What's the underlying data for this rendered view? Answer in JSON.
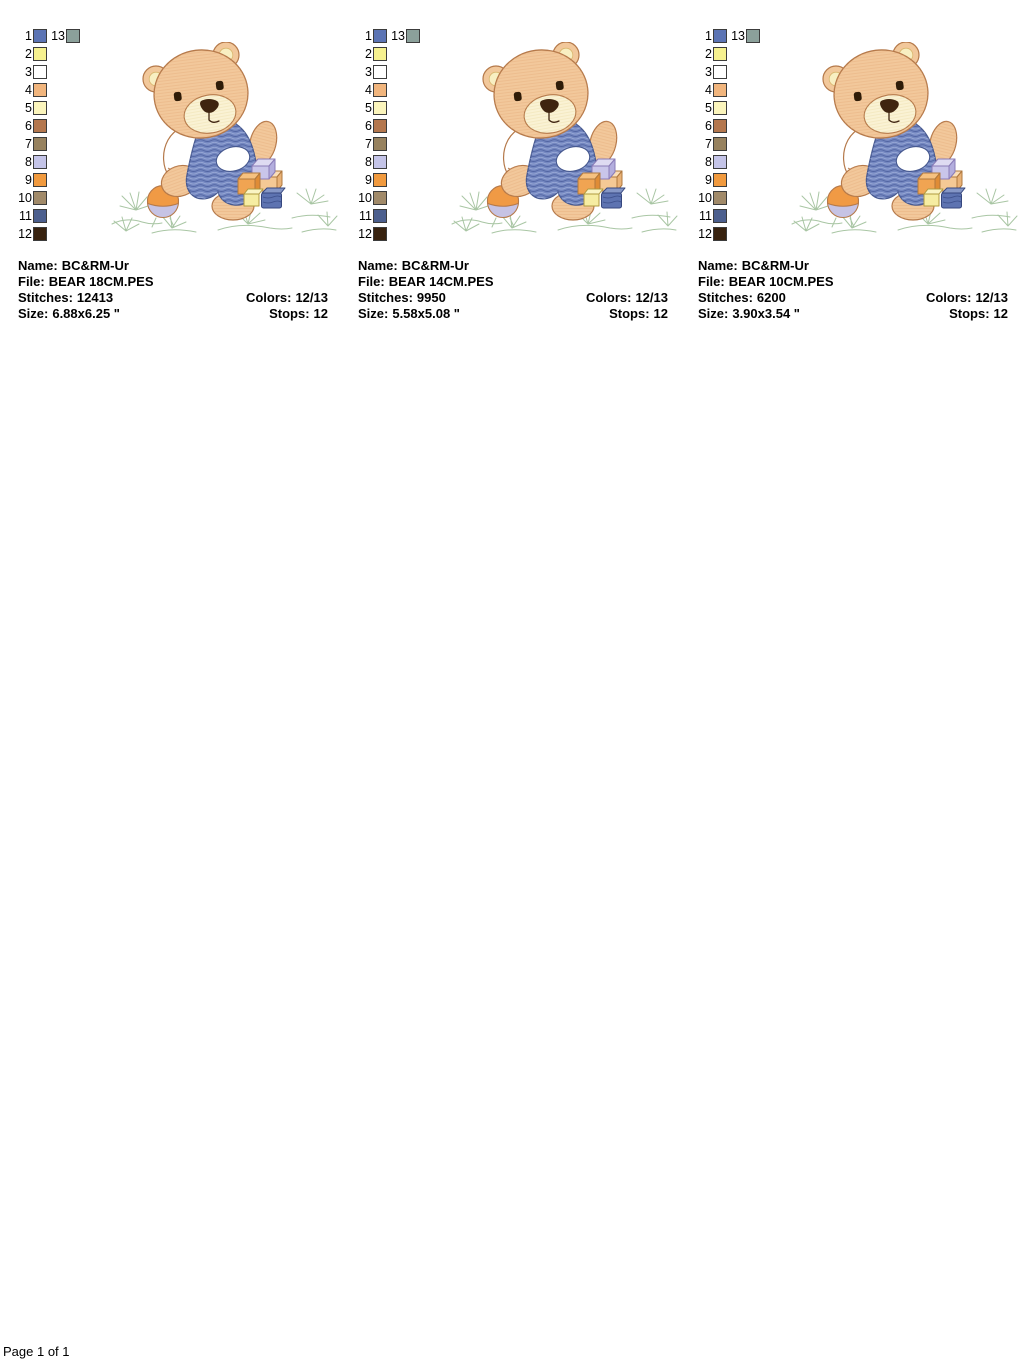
{
  "page": {
    "footer": "Page 1 of 1"
  },
  "palette": {
    "rows": [
      {
        "num": "1",
        "color": "#5c74b4"
      },
      {
        "num": "2",
        "color": "#f6f18f"
      },
      {
        "num": "3",
        "color": "#ffffff"
      },
      {
        "num": "4",
        "color": "#f1b57d"
      },
      {
        "num": "5",
        "color": "#fbf5bc"
      },
      {
        "num": "6",
        "color": "#b4774e"
      },
      {
        "num": "7",
        "color": "#97825f"
      },
      {
        "num": "8",
        "color": "#c4c4e8"
      },
      {
        "num": "9",
        "color": "#f19a3e"
      },
      {
        "num": "10",
        "color": "#a18a69"
      },
      {
        "num": "11",
        "color": "#4c5f8e"
      },
      {
        "num": "12",
        "color": "#38220f"
      }
    ],
    "extra": {
      "num": "13",
      "color": "#8ba09a"
    }
  },
  "designs": [
    {
      "name_label": "Name:",
      "name": "BC&RM-Ur",
      "file_label": "File:",
      "file": "BEAR 18CM.PES",
      "stitches_label": "Stitches:",
      "stitches": "12413",
      "colors_label": "Colors:",
      "colors": "12/13",
      "size_label": "Size:",
      "size": "6.88x6.25 \"",
      "stops_label": "Stops:",
      "stops": "12"
    },
    {
      "name_label": "Name:",
      "name": "BC&RM-Ur",
      "file_label": "File:",
      "file": "BEAR 14CM.PES",
      "stitches_label": "Stitches:",
      "stitches": "9950",
      "colors_label": "Colors:",
      "colors": "12/13",
      "size_label": "Size:",
      "size": "5.58x5.08 \"",
      "stops_label": "Stops:",
      "stops": "12"
    },
    {
      "name_label": "Name:",
      "name": "BC&RM-Ur",
      "file_label": "File:",
      "file": "BEAR 10CM.PES",
      "stitches_label": "Stitches:",
      "stitches": "6200",
      "colors_label": "Colors:",
      "colors": "12/13",
      "size_label": "Size:",
      "size": "3.90x3.54 \"",
      "stops_label": "Stops:",
      "stops": "12"
    }
  ]
}
